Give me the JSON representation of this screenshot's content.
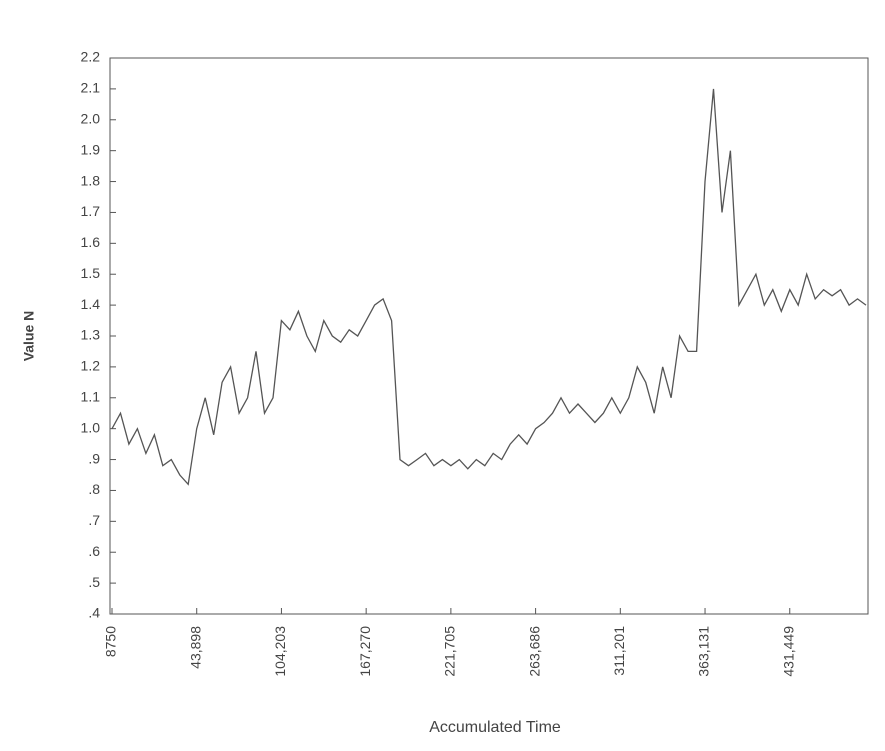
{
  "chart_data": {
    "type": "line",
    "y_label": "Value N",
    "x_label": "Accumulated Time",
    "color": "#555555",
    "categories": [
      "8750",
      null,
      null,
      null,
      null,
      null,
      null,
      null,
      null,
      null,
      "43,898",
      null,
      null,
      null,
      null,
      null,
      null,
      null,
      null,
      null,
      "104,203",
      null,
      null,
      null,
      null,
      null,
      null,
      null,
      null,
      null,
      "167,270",
      null,
      null,
      null,
      null,
      null,
      null,
      null,
      null,
      null,
      "221,705",
      null,
      null,
      null,
      null,
      null,
      null,
      null,
      null,
      null,
      "263,686",
      null,
      null,
      null,
      null,
      null,
      null,
      null,
      null,
      null,
      "311,201",
      null,
      null,
      null,
      null,
      null,
      null,
      null,
      null,
      null,
      "363,131",
      null,
      null,
      null,
      null,
      null,
      null,
      null,
      null,
      null,
      "431,449",
      null,
      null,
      null,
      null,
      null,
      null,
      null,
      null,
      null
    ],
    "values": [
      1.0,
      1.05,
      0.95,
      1.0,
      0.92,
      0.98,
      0.88,
      0.9,
      0.85,
      0.82,
      1.0,
      1.1,
      0.98,
      1.15,
      1.2,
      1.05,
      1.1,
      1.25,
      1.05,
      1.1,
      1.35,
      1.32,
      1.38,
      1.3,
      1.25,
      1.35,
      1.3,
      1.28,
      1.32,
      1.3,
      1.35,
      1.4,
      1.42,
      1.35,
      0.9,
      0.88,
      0.9,
      0.92,
      0.88,
      0.9,
      0.88,
      0.9,
      0.87,
      0.9,
      0.88,
      0.92,
      0.9,
      0.95,
      0.98,
      0.95,
      1.0,
      1.02,
      1.05,
      1.1,
      1.05,
      1.08,
      1.05,
      1.02,
      1.05,
      1.1,
      1.05,
      1.1,
      1.2,
      1.15,
      1.05,
      1.2,
      1.1,
      1.3,
      1.25,
      1.25,
      1.8,
      2.1,
      1.7,
      1.9,
      1.4,
      1.45,
      1.5,
      1.4,
      1.45,
      1.38,
      1.45,
      1.4,
      1.5,
      1.42,
      1.45,
      1.43,
      1.45,
      1.4,
      1.42,
      1.4
    ],
    "ylim": [
      0.4,
      2.2
    ],
    "yticks": [
      {
        "value": 0.4,
        "label": ".4"
      },
      {
        "value": 0.5,
        "label": ".5"
      },
      {
        "value": 0.6,
        "label": ".6"
      },
      {
        "value": 0.7,
        "label": ".7"
      },
      {
        "value": 0.8,
        "label": ".8"
      },
      {
        "value": 0.9,
        "label": ".9"
      },
      {
        "value": 1.0,
        "label": "1.0"
      },
      1.1,
      1.2,
      1.3,
      1.4,
      1.5,
      1.6,
      1.7,
      1.8,
      1.9,
      {
        "value": 2.0,
        "label": "2.0"
      },
      2.1,
      2.2
    ]
  }
}
